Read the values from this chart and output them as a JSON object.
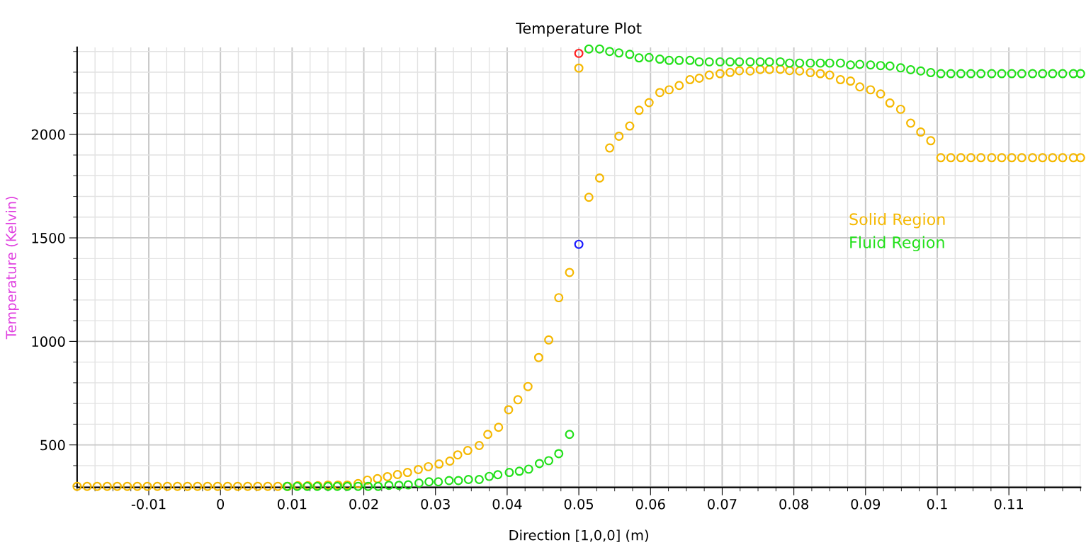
{
  "chart_data": {
    "type": "scatter",
    "title": "Temperature Plot",
    "xlabel": "Direction [1,0,0] (m)",
    "ylabel": "Temperature (Kelvin)",
    "xlim": [
      -0.02,
      0.12
    ],
    "ylim": [
      295,
      2420
    ],
    "xticks": [
      -0.01,
      0,
      0.01,
      0.02,
      0.03,
      0.04,
      0.05,
      0.06,
      0.07,
      0.08,
      0.09,
      0.1,
      0.11
    ],
    "yticks": [
      500,
      1000,
      1500,
      2000
    ],
    "grid": true,
    "marker": "circle",
    "legend": "center right",
    "series": [
      {
        "name": "Solid Region",
        "color": "#f5b800",
        "x": [
          -0.02,
          -0.0186,
          -0.0172,
          -0.0158,
          -0.0144,
          -0.013,
          -0.0116,
          -0.0102,
          -0.0088,
          -0.0074,
          -0.006,
          -0.0046,
          -0.0032,
          -0.0018,
          -0.0004,
          0.001,
          0.0024,
          0.0038,
          0.0052,
          0.0066,
          0.008,
          0.0094,
          0.0108,
          0.0122,
          0.0136,
          0.015,
          0.0164,
          0.0177,
          0.0192,
          0.0205,
          0.0219,
          0.0233,
          0.0247,
          0.0261,
          0.0276,
          0.029,
          0.0305,
          0.032,
          0.0331,
          0.0345,
          0.0361,
          0.0373,
          0.0388,
          0.0402,
          0.0415,
          0.0429,
          0.0444,
          0.0458,
          0.0472,
          0.0487,
          0.05,
          0.0514,
          0.0529,
          0.0543,
          0.0556,
          0.0571,
          0.0584,
          0.0598,
          0.0613,
          0.0626,
          0.064,
          0.0655,
          0.0668,
          0.0682,
          0.0697,
          0.0711,
          0.0724,
          0.0739,
          0.0753,
          0.0766,
          0.0781,
          0.0794,
          0.0808,
          0.0823,
          0.0837,
          0.085,
          0.0865,
          0.0879,
          0.0892,
          0.0907,
          0.0921,
          0.0934,
          0.0949,
          0.0963,
          0.0977,
          0.0991,
          0.1005,
          0.1019,
          0.1033,
          0.1047,
          0.1061,
          0.1076,
          0.109,
          0.1104,
          0.1118,
          0.1133,
          0.1147,
          0.1161,
          0.1175,
          0.119,
          0.12
        ],
        "values": [
          300,
          300,
          300,
          300,
          300,
          300,
          300,
          300,
          300,
          300,
          300,
          300,
          300,
          300,
          300,
          300,
          300,
          300,
          300,
          300,
          300,
          300,
          303,
          303,
          303,
          306,
          306,
          306,
          313,
          330,
          337,
          347,
          357,
          367,
          381,
          395,
          408,
          422,
          452,
          473,
          497,
          551,
          585,
          670,
          718,
          782,
          922,
          1007,
          1211,
          1333,
          2320,
          1696,
          1789,
          1934,
          1991,
          2040,
          2116,
          2153,
          2202,
          2215,
          2236,
          2264,
          2271,
          2286,
          2293,
          2299,
          2307,
          2306,
          2313,
          2313,
          2314,
          2308,
          2306,
          2298,
          2293,
          2286,
          2264,
          2257,
          2229,
          2215,
          2195,
          2151,
          2121,
          2054,
          2011,
          1969,
          1887,
          1887,
          1887,
          1887,
          1887,
          1887,
          1887,
          1887,
          1887,
          1887,
          1887,
          1887,
          1887,
          1887,
          1887
        ]
      },
      {
        "name": "Fluid Region",
        "color": "#22e01a",
        "x": [
          0.0093,
          0.0107,
          0.0121,
          0.0135,
          0.015,
          0.0163,
          0.0177,
          0.0192,
          0.0206,
          0.022,
          0.0235,
          0.0249,
          0.0262,
          0.0277,
          0.0291,
          0.0304,
          0.0319,
          0.0332,
          0.0346,
          0.0361,
          0.0375,
          0.0387,
          0.0403,
          0.0417,
          0.043,
          0.0445,
          0.0458,
          0.0472,
          0.0487,
          0.0514,
          0.0529,
          0.0543,
          0.0556,
          0.0571,
          0.0584,
          0.0598,
          0.0613,
          0.0626,
          0.064,
          0.0655,
          0.0668,
          0.0682,
          0.0697,
          0.0711,
          0.0724,
          0.0739,
          0.0753,
          0.0766,
          0.0781,
          0.0794,
          0.0808,
          0.0823,
          0.0837,
          0.085,
          0.0865,
          0.0879,
          0.0892,
          0.0907,
          0.0921,
          0.0934,
          0.0949,
          0.0963,
          0.0977,
          0.0991,
          0.1005,
          0.1019,
          0.1033,
          0.1047,
          0.1061,
          0.1076,
          0.109,
          0.1104,
          0.1118,
          0.1133,
          0.1147,
          0.1161,
          0.1175,
          0.119,
          0.12
        ],
        "values": [
          300,
          300,
          300,
          300,
          300,
          300,
          300,
          300,
          300,
          300,
          305,
          305,
          307,
          316,
          322,
          322,
          328,
          328,
          333,
          333,
          348,
          356,
          367,
          373,
          383,
          410,
          424,
          458,
          551,
          2412,
          2412,
          2400,
          2393,
          2386,
          2369,
          2371,
          2363,
          2357,
          2357,
          2357,
          2350,
          2350,
          2350,
          2350,
          2350,
          2350,
          2350,
          2350,
          2350,
          2344,
          2344,
          2344,
          2344,
          2344,
          2344,
          2335,
          2338,
          2335,
          2332,
          2330,
          2321,
          2312,
          2306,
          2298,
          2293,
          2293,
          2293,
          2293,
          2293,
          2293,
          2293,
          2293,
          2293,
          2293,
          2293,
          2293,
          2293,
          2293,
          2293
        ]
      },
      {
        "color": "#ff2020",
        "x": [
          0.05
        ],
        "values": [
          2391
        ]
      },
      {
        "color": "#1a1aff",
        "x": [
          0.05
        ],
        "values": [
          1469
        ]
      }
    ]
  }
}
